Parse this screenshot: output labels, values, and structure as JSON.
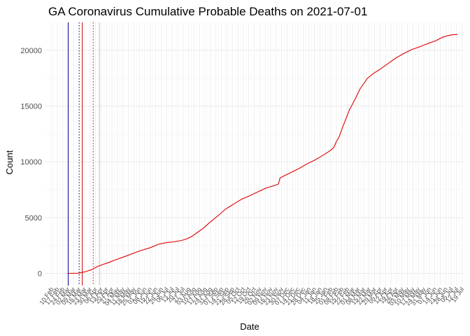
{
  "chart_data": {
    "type": "line",
    "title": "GA Coronavirus Cumulative Probable Deaths on 2021-07-01",
    "xlabel": "Date",
    "ylabel": "Count",
    "x_start": "2020-02-01",
    "x_end": "2021-07-21",
    "ylim": [
      -1100,
      22500
    ],
    "yticks": [
      0,
      5000,
      10000,
      15000,
      20000
    ],
    "xtick_labels": [
      "10 Feb",
      "17 Feb",
      "24 Feb",
      "02 Mar",
      "09 Mar",
      "16 Mar",
      "23 Mar",
      "30 Mar",
      "06 Apr",
      "13 Apr",
      "20 Apr",
      "27 Apr",
      "04 May",
      "11 May",
      "18 May",
      "25 May",
      "01 Jun",
      "08 Jun",
      "15 Jun",
      "22 Jun",
      "29 Jun",
      "06 Jul",
      "13 Jul",
      "20 Jul",
      "27 Jul",
      "03 Aug",
      "10 Aug",
      "17 Aug",
      "24 Aug",
      "31 Aug",
      "07 Sep",
      "14 Sep",
      "21 Sep",
      "28 Sep",
      "05 Oct",
      "12 Oct",
      "19 Oct",
      "26 Oct",
      "02 Nov",
      "09 Nov",
      "16 Nov",
      "23 Nov",
      "30 Nov",
      "07 Dec",
      "14 Dec",
      "21 Dec",
      "28 Dec",
      "04 Jan",
      "11 Jan",
      "18 Jan",
      "25 Jan",
      "01 Feb",
      "08 Feb",
      "15 Feb",
      "22 Feb",
      "01 Mar",
      "08 Mar",
      "15 Mar",
      "22 Mar",
      "29 Mar",
      "05 Apr",
      "12 Apr",
      "19 Apr",
      "26 Apr",
      "03 May",
      "10 May",
      "17 May",
      "24 May",
      "31 May",
      "07 Jun",
      "14 Jun",
      "21 Jun",
      "28 Jun",
      "05 Jul",
      "12 Jul",
      "19 Jul"
    ],
    "reference_lines": [
      {
        "date": "2020-03-02",
        "color": "#00008b",
        "style": "solid"
      },
      {
        "date": "2020-03-16",
        "color": "#00008b",
        "style": "dotted"
      },
      {
        "date": "2020-03-20",
        "color": "#cc0000",
        "style": "solid"
      },
      {
        "date": "2020-04-03",
        "color": "#cc0000",
        "style": "dotted"
      },
      {
        "date": "2020-04-11",
        "color": "#f2b0b0",
        "style": "solid"
      }
    ],
    "series": [
      {
        "name": "Cumulative Probable Deaths",
        "color": "#e00000",
        "points": [
          [
            "2020-03-01",
            0
          ],
          [
            "2020-03-15",
            10
          ],
          [
            "2020-03-24",
            150
          ],
          [
            "2020-04-01",
            330
          ],
          [
            "2020-04-08",
            600
          ],
          [
            "2020-04-15",
            780
          ],
          [
            "2020-04-22",
            950
          ],
          [
            "2020-05-01",
            1200
          ],
          [
            "2020-05-15",
            1550
          ],
          [
            "2020-06-01",
            2000
          ],
          [
            "2020-06-15",
            2300
          ],
          [
            "2020-06-25",
            2600
          ],
          [
            "2020-07-05",
            2750
          ],
          [
            "2020-07-15",
            2820
          ],
          [
            "2020-07-25",
            2950
          ],
          [
            "2020-08-01",
            3100
          ],
          [
            "2020-08-08",
            3350
          ],
          [
            "2020-08-15",
            3700
          ],
          [
            "2020-08-22",
            4050
          ],
          [
            "2020-08-29",
            4500
          ],
          [
            "2020-09-05",
            4900
          ],
          [
            "2020-09-12",
            5300
          ],
          [
            "2020-09-19",
            5750
          ],
          [
            "2020-09-26",
            6050
          ],
          [
            "2020-10-03",
            6350
          ],
          [
            "2020-10-10",
            6650
          ],
          [
            "2020-10-20",
            6950
          ],
          [
            "2020-11-01",
            7350
          ],
          [
            "2020-11-10",
            7650
          ],
          [
            "2020-11-20",
            7850
          ],
          [
            "2020-11-26",
            8000
          ],
          [
            "2020-11-28",
            8550
          ],
          [
            "2020-12-05",
            8800
          ],
          [
            "2020-12-15",
            9150
          ],
          [
            "2020-12-25",
            9500
          ],
          [
            "2021-01-01",
            9800
          ],
          [
            "2021-01-10",
            10100
          ],
          [
            "2021-01-20",
            10500
          ],
          [
            "2021-01-28",
            10850
          ],
          [
            "2021-02-01",
            11050
          ],
          [
            "2021-02-05",
            11300
          ],
          [
            "2021-02-08",
            11800
          ],
          [
            "2021-02-12",
            12300
          ],
          [
            "2021-02-16",
            13100
          ],
          [
            "2021-02-20",
            13800
          ],
          [
            "2021-02-25",
            14700
          ],
          [
            "2021-03-01",
            15200
          ],
          [
            "2021-03-06",
            15900
          ],
          [
            "2021-03-10",
            16500
          ],
          [
            "2021-03-15",
            17000
          ],
          [
            "2021-03-20",
            17500
          ],
          [
            "2021-03-27",
            17900
          ],
          [
            "2021-04-05",
            18300
          ],
          [
            "2021-04-15",
            18800
          ],
          [
            "2021-04-25",
            19300
          ],
          [
            "2021-05-05",
            19700
          ],
          [
            "2021-05-15",
            20050
          ],
          [
            "2021-05-25",
            20300
          ],
          [
            "2021-06-05",
            20600
          ],
          [
            "2021-06-15",
            20850
          ],
          [
            "2021-06-25",
            21200
          ],
          [
            "2021-07-05",
            21380
          ],
          [
            "2021-07-13",
            21420
          ]
        ]
      }
    ]
  }
}
